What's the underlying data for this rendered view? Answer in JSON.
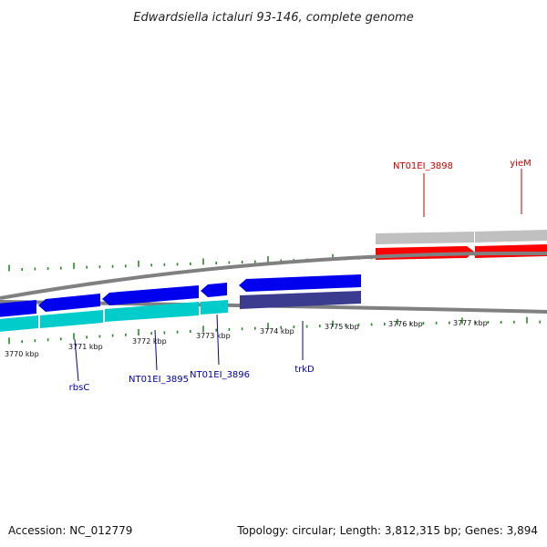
{
  "title": "Edwardsiella ictaluri 93-146, complete genome",
  "footer": {
    "accession": "Accession: NC_012779",
    "summary": "Topology: circular; Length: 3,812,315 bp; Genes: 3,894"
  },
  "colors": {
    "forward_cds": "#ff0000",
    "forward_rna": "#c0c0c0",
    "reverse_cds": "#0000ee",
    "reverse_rna": "#00cccc",
    "reverse_other": "#3b3b8f",
    "backbone": "#808080",
    "gc_tick": "#2a8a2a",
    "forward_label": "#cc0000",
    "reverse_label": "#0000aa"
  },
  "scale_ticks": [
    {
      "label": "3770 kbp",
      "kbp": 3770
    },
    {
      "label": "3771 kbp",
      "kbp": 3771
    },
    {
      "label": "3772 kbp",
      "kbp": 3772
    },
    {
      "label": "3773 kbp",
      "kbp": 3773
    },
    {
      "label": "3774 kbp",
      "kbp": 3774
    },
    {
      "label": "3775 kbp",
      "kbp": 3775
    },
    {
      "label": "3776 kbp",
      "kbp": 3776
    },
    {
      "label": "3777 kbp",
      "kbp": 3777
    }
  ],
  "gene_labels": [
    {
      "name": "NT01EI_3898",
      "strand": "forward"
    },
    {
      "name": "yieM",
      "strand": "forward"
    },
    {
      "name": "rbsC",
      "strand": "reverse"
    },
    {
      "name": "NT01EI_3895",
      "strand": "reverse"
    },
    {
      "name": "NT01EI_3896",
      "strand": "reverse"
    },
    {
      "name": "trkD",
      "strand": "reverse"
    }
  ]
}
